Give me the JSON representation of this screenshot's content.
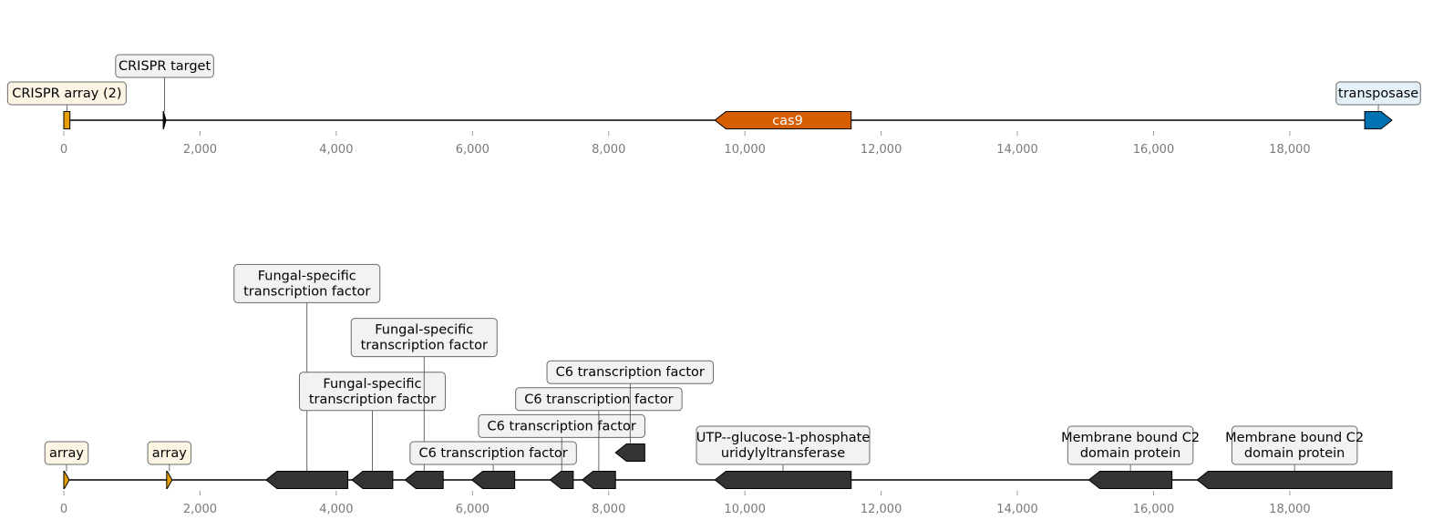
{
  "x_axis": {
    "min": 0,
    "max": 19500,
    "ticks": [
      0,
      2000,
      4000,
      6000,
      8000,
      10000,
      12000,
      14000,
      16000,
      18000
    ],
    "tick_labels": [
      "0",
      "2,000",
      "4,000",
      "6,000",
      "8,000",
      "10,000",
      "12,000",
      "14,000",
      "16,000",
      "18,000"
    ]
  },
  "colors": {
    "crispr_array": "#E69F00",
    "cas9": "#D55E00",
    "transposase": "#0072B2",
    "gene_dark": "#333333",
    "label_cream": "#FDF5E4",
    "label_grey": "#F2F2F2",
    "label_blue": "#E5F1F8"
  },
  "tracks": [
    {
      "name": "top",
      "features": [
        {
          "id": "crispr-array",
          "start": 0,
          "end": 90,
          "strand": 0,
          "color": "#E69F00",
          "label": "CRISPR array (2)",
          "label_bg": "#FDF5E4",
          "label_level": 0
        },
        {
          "id": "crispr-target",
          "start": 1460,
          "end": 1500,
          "strand": 1,
          "color": "#111111",
          "label": "CRISPR target",
          "label_bg": "#F2F2F2",
          "label_level": 1
        },
        {
          "id": "cas9",
          "start": 9560,
          "end": 11560,
          "strand": -1,
          "color": "#D55E00",
          "label": "cas9",
          "inline_label": true,
          "label_level": 0
        },
        {
          "id": "transposase",
          "start": 19100,
          "end": 19500,
          "strand": 1,
          "color": "#0072B2",
          "label": "transposase",
          "label_bg": "#E5F1F8",
          "label_level": 0
        }
      ]
    },
    {
      "name": "bottom",
      "features": [
        {
          "id": "array-1",
          "start": 0,
          "end": 80,
          "strand": 1,
          "color": "#E69F00",
          "label": "array",
          "label_bg": "#FDF5E4",
          "label_level": 0
        },
        {
          "id": "array-2",
          "start": 1510,
          "end": 1590,
          "strand": 1,
          "color": "#E69F00",
          "label": "array",
          "label_bg": "#FDF5E4",
          "label_level": 0
        },
        {
          "id": "gene-1",
          "start": 2970,
          "end": 4170,
          "strand": -1,
          "color": "#333333",
          "label": "Fungal-specific\ntranscription factor",
          "label_bg": "#F2F2F2",
          "label_level": 6
        },
        {
          "id": "gene-2",
          "start": 4230,
          "end": 4830,
          "strand": -1,
          "color": "#333333",
          "label": "Fungal-specific\ntranscription factor",
          "label_bg": "#F2F2F2",
          "label_level": 2
        },
        {
          "id": "gene-3",
          "start": 5010,
          "end": 5570,
          "strand": -1,
          "color": "#333333",
          "label": "Fungal-specific\ntranscription factor",
          "label_bg": "#F2F2F2",
          "label_level": 4
        },
        {
          "id": "gene-4",
          "start": 5990,
          "end": 6620,
          "strand": -1,
          "color": "#333333",
          "label": "C6 transcription factor",
          "label_bg": "#F2F2F2",
          "label_level": 0
        },
        {
          "id": "gene-5",
          "start": 7140,
          "end": 7480,
          "strand": -1,
          "color": "#333333",
          "label": "C6 transcription factor",
          "label_bg": "#F2F2F2",
          "label_level": 1
        },
        {
          "id": "gene-6",
          "start": 7610,
          "end": 8100,
          "strand": -1,
          "color": "#333333",
          "label": "C6 transcription factor",
          "label_bg": "#F2F2F2",
          "label_level": 2
        },
        {
          "id": "gene-7",
          "start": 8100,
          "end": 8530,
          "strand": -1,
          "color": "#333333",
          "label": "C6 transcription factor",
          "label_bg": "#F2F2F2",
          "label_level": 3,
          "row": 1
        },
        {
          "id": "gene-8",
          "start": 9560,
          "end": 11560,
          "strand": -1,
          "color": "#333333",
          "label": "UTP--glucose-1-phosphate\nuridylyltransferase",
          "label_bg": "#F2F2F2",
          "label_level": 0
        },
        {
          "id": "gene-9",
          "start": 15050,
          "end": 16270,
          "strand": -1,
          "color": "#333333",
          "label": "Membrane bound C2\ndomain protein",
          "label_bg": "#F2F2F2",
          "label_level": 0
        },
        {
          "id": "gene-10",
          "start": 16640,
          "end": 19500,
          "strand": -1,
          "color": "#333333",
          "label": "Membrane bound C2\ndomain protein",
          "label_bg": "#F2F2F2",
          "label_level": 0
        }
      ]
    }
  ]
}
